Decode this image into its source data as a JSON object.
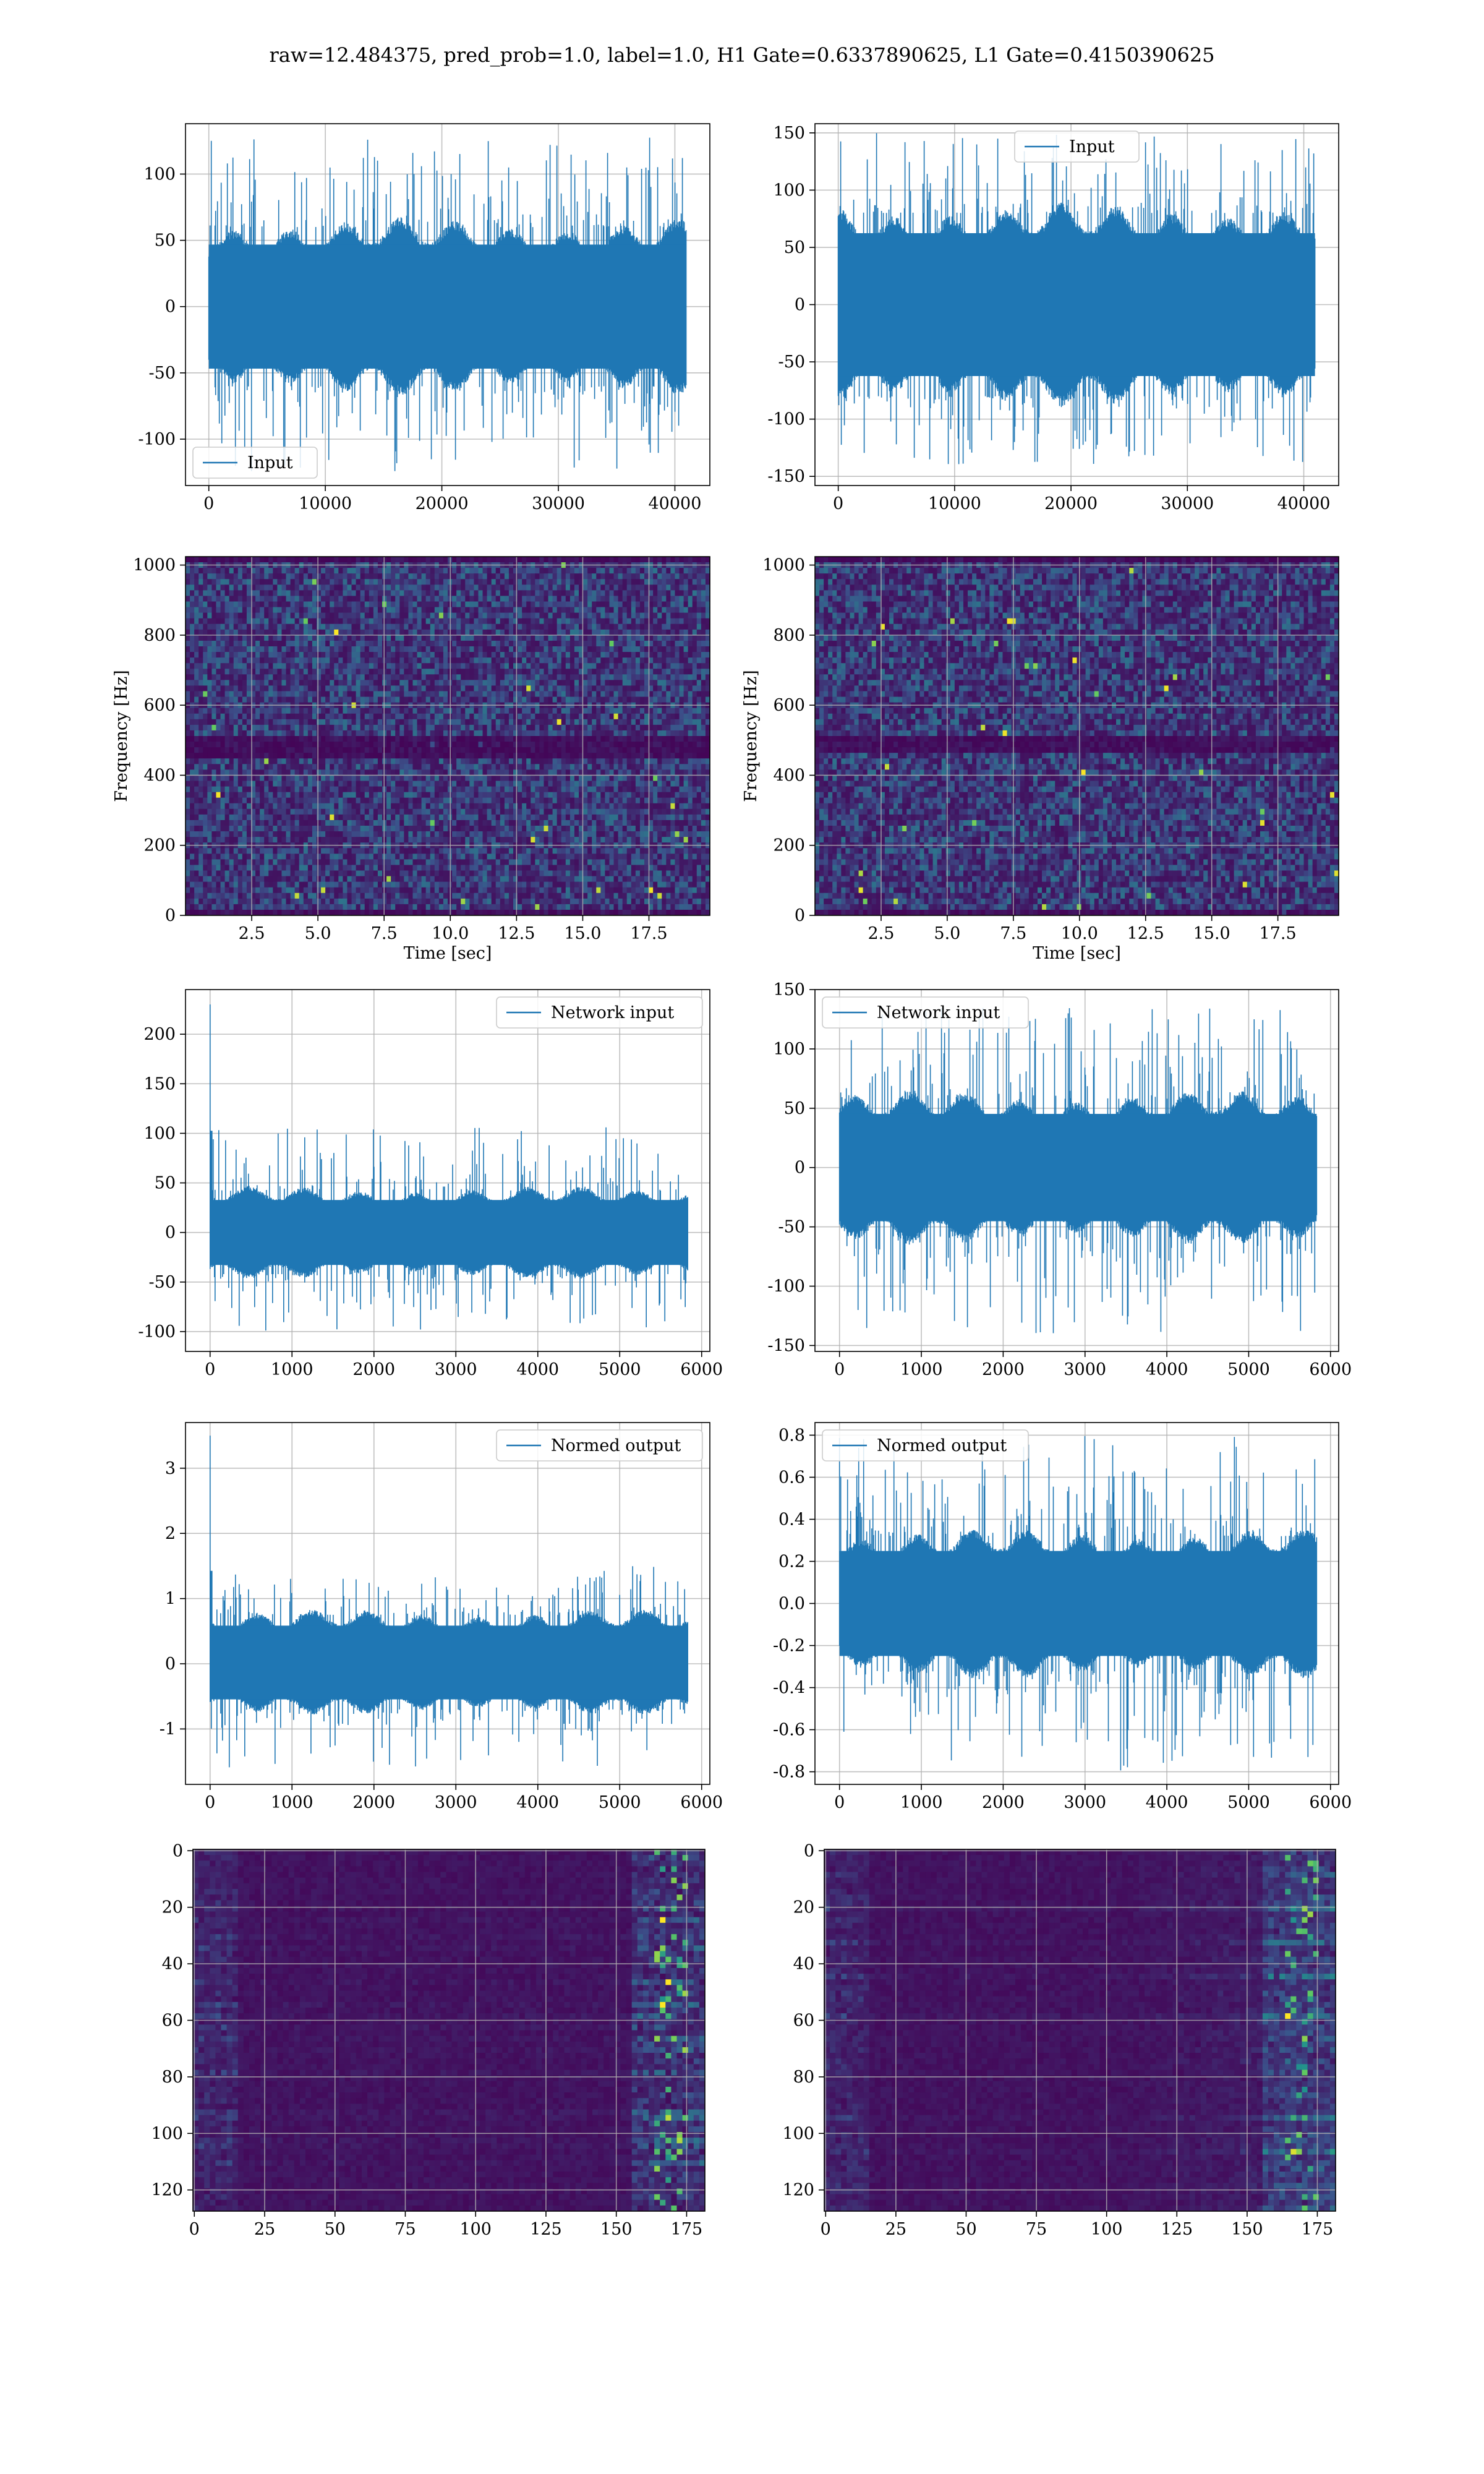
{
  "suptitle": "raw=12.484375, pred_prob=1.0, label=1.0, H1 Gate=0.6337890625, L1 Gate=0.4150390625",
  "colors": {
    "series": "#1f77b4",
    "grid": "#b0b0b0",
    "viridis_dark": "#440154",
    "viridis_mid": "#3b528b",
    "viridis_teal": "#21918c",
    "viridis_green": "#5ec962",
    "viridis_yellow": "#fde725"
  },
  "chart_data": [
    {
      "id": "h1_input",
      "type": "line",
      "row": 1,
      "col": 1,
      "legend": "Input",
      "legend_loc": "lower left",
      "xlim": [
        -2000,
        43000
      ],
      "ylim": [
        -135,
        138
      ],
      "xticks": [
        0,
        10000,
        20000,
        30000,
        40000
      ],
      "yticks": [
        -100,
        -50,
        0,
        50,
        100
      ],
      "x_range": [
        0,
        40960
      ],
      "core": [
        -60,
        60
      ],
      "spike_max": 128,
      "spike_min": -125,
      "spike_rate": 0.16,
      "xlabel": "",
      "ylabel": "",
      "grid": true
    },
    {
      "id": "l1_input",
      "type": "line",
      "row": 1,
      "col": 2,
      "legend": "Input",
      "legend_loc": "upper center",
      "xlim": [
        -2000,
        43000
      ],
      "ylim": [
        -158,
        158
      ],
      "xticks": [
        0,
        10000,
        20000,
        30000,
        40000
      ],
      "yticks": [
        -150,
        -100,
        -50,
        0,
        50,
        100,
        150
      ],
      "x_range": [
        0,
        40960
      ],
      "core": [
        -80,
        80
      ],
      "spike_max": 150,
      "spike_min": -140,
      "spike_rate": 0.18,
      "xlabel": "",
      "ylabel": "",
      "grid": true
    },
    {
      "id": "h1_spectrogram",
      "type": "heatmap",
      "row": 2,
      "col": 1,
      "xlim": [
        0,
        19.8
      ],
      "ylim": [
        0,
        1024
      ],
      "xticks": [
        2.5,
        5.0,
        7.5,
        10.0,
        12.5,
        15.0,
        17.5
      ],
      "yticks": [
        0,
        200,
        400,
        600,
        800,
        1000
      ],
      "xlabel": "Time [sec]",
      "ylabel": "Frequency [Hz]",
      "grid": true,
      "cols": 120,
      "rows": 64,
      "dark_band": [
        455,
        520
      ],
      "seed": 11
    },
    {
      "id": "l1_spectrogram",
      "type": "heatmap",
      "row": 2,
      "col": 2,
      "xlim": [
        0,
        19.8
      ],
      "ylim": [
        0,
        1024
      ],
      "xticks": [
        2.5,
        5.0,
        7.5,
        10.0,
        12.5,
        15.0,
        17.5
      ],
      "yticks": [
        0,
        200,
        400,
        600,
        800,
        1000
      ],
      "xlabel": "Time [sec]",
      "ylabel": "Frequency [Hz]",
      "grid": true,
      "cols": 120,
      "rows": 64,
      "dark_band": [
        470,
        520
      ],
      "seed": 23
    },
    {
      "id": "h1_network_input",
      "type": "line",
      "row": 3,
      "col": 1,
      "legend": "Network input",
      "legend_loc": "upper right",
      "xlim": [
        -300,
        6100
      ],
      "ylim": [
        -120,
        245
      ],
      "xticks": [
        0,
        1000,
        2000,
        3000,
        4000,
        5000,
        6000
      ],
      "yticks": [
        -100,
        -50,
        0,
        50,
        100,
        150,
        200
      ],
      "x_range": [
        0,
        5830
      ],
      "core": [
        -42,
        42
      ],
      "spike_max": 108,
      "spike_min": -100,
      "spike_rate": 0.16,
      "peak": {
        "x": 0,
        "y": 230
      },
      "xlabel": "",
      "ylabel": "",
      "grid": true
    },
    {
      "id": "l1_network_input",
      "type": "line",
      "row": 3,
      "col": 2,
      "legend": "Network input",
      "legend_loc": "upper left",
      "xlim": [
        -300,
        6100
      ],
      "ylim": [
        -155,
        150
      ],
      "xticks": [
        0,
        1000,
        2000,
        3000,
        4000,
        5000,
        6000
      ],
      "yticks": [
        -150,
        -100,
        -50,
        0,
        50,
        100,
        150
      ],
      "x_range": [
        0,
        5830
      ],
      "core": [
        -58,
        58
      ],
      "spike_max": 135,
      "spike_min": -140,
      "spike_rate": 0.18,
      "xlabel": "",
      "ylabel": "",
      "grid": true
    },
    {
      "id": "h1_normed_output",
      "type": "line",
      "row": 4,
      "col": 1,
      "legend": "Normed output",
      "legend_loc": "upper right",
      "xlim": [
        -300,
        6100
      ],
      "ylim": [
        -1.85,
        3.7
      ],
      "xticks": [
        0,
        1000,
        2000,
        3000,
        4000,
        5000,
        6000
      ],
      "yticks": [
        -1,
        0,
        1,
        2,
        3
      ],
      "x_range": [
        0,
        5830
      ],
      "core": [
        -0.7,
        0.75
      ],
      "spike_max": 1.5,
      "spike_min": -1.6,
      "spike_rate": 0.16,
      "peak": {
        "x": 0,
        "y": 3.5
      },
      "xlabel": "",
      "ylabel": "",
      "grid": true
    },
    {
      "id": "l1_normed_output",
      "type": "line",
      "row": 4,
      "col": 2,
      "legend": "Normed output",
      "legend_loc": "upper left",
      "xlim": [
        -300,
        6100
      ],
      "ylim": [
        -0.86,
        0.86
      ],
      "xticks": [
        0,
        1000,
        2000,
        3000,
        4000,
        5000,
        6000
      ],
      "yticks": [
        -0.8,
        -0.6,
        -0.4,
        -0.2,
        0.0,
        0.2,
        0.4,
        0.6,
        0.8
      ],
      "x_range": [
        0,
        5830
      ],
      "core": [
        -0.32,
        0.32
      ],
      "spike_max": 0.8,
      "spike_min": -0.8,
      "spike_rate": 0.18,
      "xlabel": "",
      "ylabel": "",
      "grid": true
    },
    {
      "id": "h1_features",
      "type": "heatmap",
      "row": 5,
      "col": 1,
      "xlim": [
        -0.5,
        181.5
      ],
      "ylim": [
        127.5,
        -0.5
      ],
      "xticks": [
        0,
        25,
        50,
        75,
        100,
        125,
        150,
        175
      ],
      "yticks": [
        0,
        20,
        40,
        60,
        80,
        100,
        120
      ],
      "xlabel": "",
      "ylabel": "",
      "grid": true,
      "cols": 182,
      "rows": 128,
      "seed": 37
    },
    {
      "id": "l1_features",
      "type": "heatmap",
      "row": 5,
      "col": 2,
      "xlim": [
        -0.5,
        181.5
      ],
      "ylim": [
        127.5,
        -0.5
      ],
      "xticks": [
        0,
        25,
        50,
        75,
        100,
        125,
        150,
        175
      ],
      "yticks": [
        0,
        20,
        40,
        60,
        80,
        100,
        120
      ],
      "xlabel": "",
      "ylabel": "",
      "grid": true,
      "cols": 182,
      "rows": 128,
      "seed": 53
    }
  ]
}
